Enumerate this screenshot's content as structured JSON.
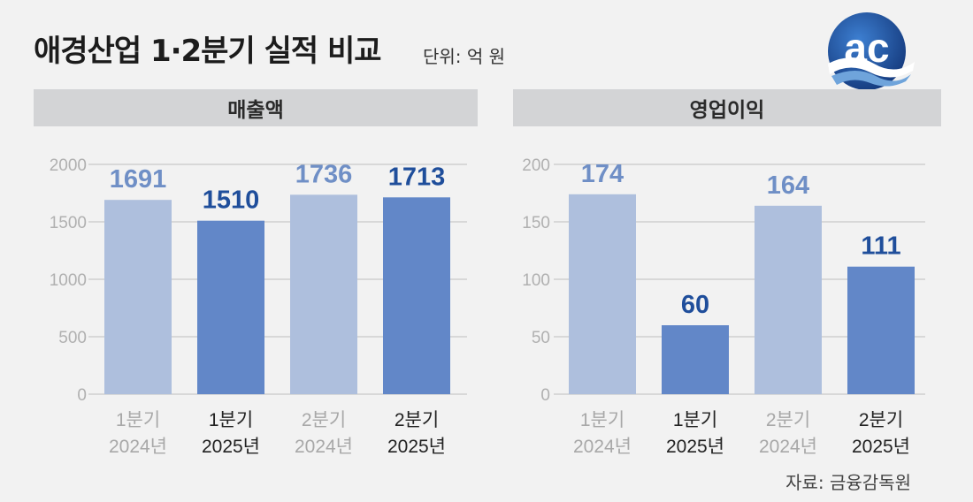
{
  "title": "애경산업 1·2분기 실적 비교",
  "unit": "단위: 억 원",
  "source": "자료: 금융감독원",
  "logo": {
    "text": "ac",
    "colors": {
      "blue": "#1f4e9b",
      "light": "#6fa4db"
    }
  },
  "colors": {
    "light_bar": "#aebfdd",
    "dark_bar": "#6287c8",
    "light_label": "#6f8fc6",
    "dark_label": "#1f4e9b",
    "axis_text": "#b0b0b0",
    "grid": "#bdbdbd"
  },
  "chart_data": [
    {
      "type": "bar",
      "title": "매출액",
      "categories": [
        [
          "1분기",
          "2024년"
        ],
        [
          "1분기",
          "2025년"
        ],
        [
          "2분기",
          "2024년"
        ],
        [
          "2분기",
          "2025년"
        ]
      ],
      "values": [
        1691,
        1510,
        1736,
        1713
      ],
      "bar_shades": [
        "light",
        "dark",
        "light",
        "dark"
      ],
      "ylim": [
        0,
        2000
      ],
      "yticks": [
        0,
        500,
        1000,
        1500,
        2000
      ],
      "grid": true
    },
    {
      "type": "bar",
      "title": "영업이익",
      "categories": [
        [
          "1분기",
          "2024년"
        ],
        [
          "1분기",
          "2025년"
        ],
        [
          "2분기",
          "2024년"
        ],
        [
          "2분기",
          "2025년"
        ]
      ],
      "values": [
        174,
        60,
        164,
        111
      ],
      "bar_shades": [
        "light",
        "dark",
        "light",
        "dark"
      ],
      "ylim": [
        0,
        200
      ],
      "yticks": [
        0,
        50,
        100,
        150,
        200
      ],
      "grid": true
    }
  ]
}
